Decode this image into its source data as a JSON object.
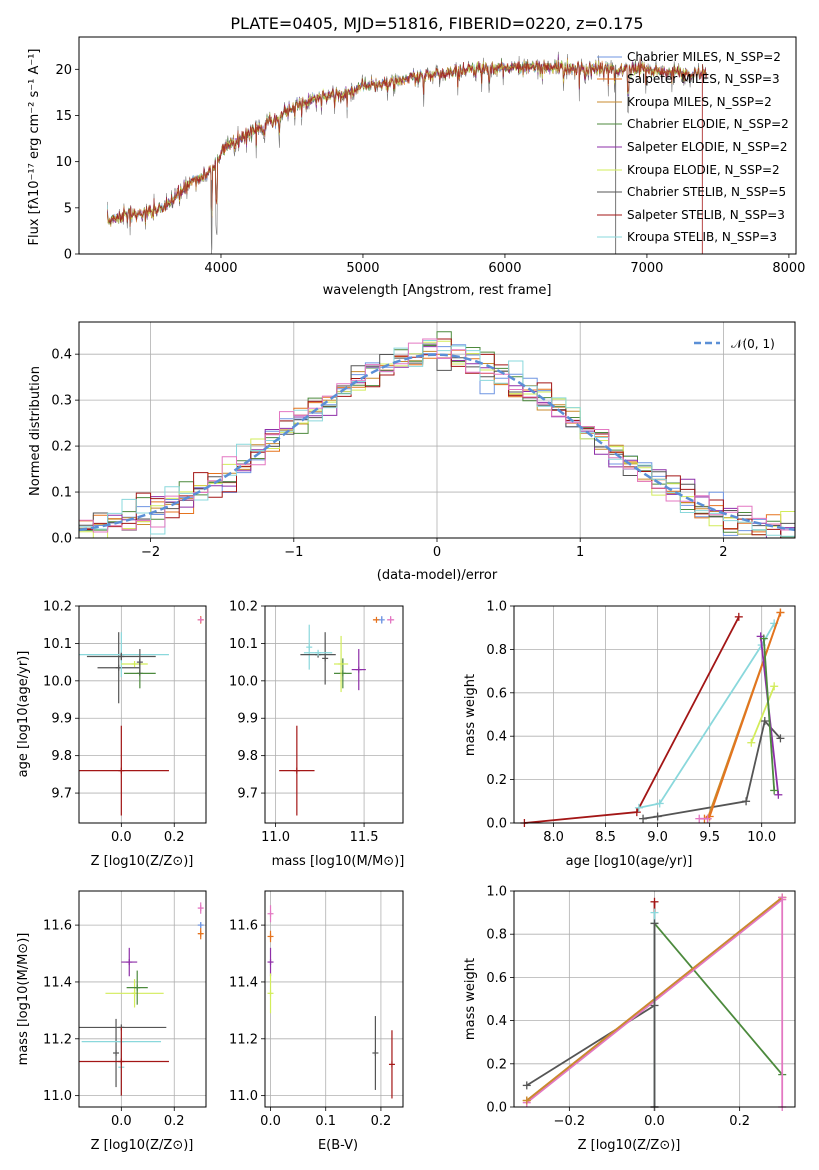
{
  "title": "PLATE=0405, MJD=51816, FIBERID=0220, z=0.175",
  "colors": {
    "Chabrier MILES": "#6f95e2",
    "Salpeter MILES": "#e5731e",
    "Kroupa MILES": "#c88b2f",
    "Chabrier ELODIE": "#4c8a3d",
    "Salpeter ELODIE": "#8e2fa8",
    "Kroupa ELODIE": "#d2ec5a",
    "Chabrier STELIB": "#555555",
    "Salpeter STELIB": "#a31616",
    "Kroupa STELIB": "#8ad8dc",
    "pink": "#e377c2",
    "normal": "#5b8fd6"
  },
  "chart_data": [
    {
      "id": "spectrum",
      "type": "line",
      "title": "PLATE=0405, MJD=51816, FIBERID=0220, z=0.175",
      "xlabel": "wavelength [Angstrom, rest frame]",
      "ylabel": "Flux [fλ10⁻¹⁷ erg cm⁻² s⁻¹ A⁻¹]",
      "xlim": [
        3000,
        8050
      ],
      "ylim": [
        0,
        23.5
      ],
      "xticks": [
        4000,
        5000,
        6000,
        7000,
        8000
      ],
      "yticks": [
        0,
        5,
        10,
        15,
        20
      ],
      "grid": false,
      "legend_position": "right",
      "continuum": [
        [
          3200,
          3.5
        ],
        [
          3300,
          4.2
        ],
        [
          3450,
          4.4
        ],
        [
          3600,
          5.0
        ],
        [
          3700,
          6.5
        ],
        [
          3800,
          8.0
        ],
        [
          3900,
          8.6
        ],
        [
          3950,
          9.5
        ],
        [
          4000,
          11.0
        ],
        [
          4100,
          12.2
        ],
        [
          4200,
          13.2
        ],
        [
          4300,
          13.8
        ],
        [
          4400,
          14.8
        ],
        [
          4500,
          15.8
        ],
        [
          4600,
          16.5
        ],
        [
          4700,
          17.0
        ],
        [
          4800,
          17.2
        ],
        [
          4900,
          17.6
        ],
        [
          5000,
          18.2
        ],
        [
          5100,
          18.4
        ],
        [
          5200,
          18.6
        ],
        [
          5300,
          19.0
        ],
        [
          5400,
          19.3
        ],
        [
          5500,
          19.4
        ],
        [
          5600,
          19.6
        ],
        [
          5700,
          19.9
        ],
        [
          5800,
          20.1
        ],
        [
          5900,
          20.1
        ],
        [
          6000,
          20.3
        ],
        [
          6100,
          20.2
        ],
        [
          6200,
          20.3
        ],
        [
          6400,
          20.1
        ],
        [
          6600,
          20.1
        ],
        [
          6800,
          20.0
        ],
        [
          7000,
          20.0
        ],
        [
          7200,
          19.6
        ],
        [
          7400,
          19.4
        ]
      ],
      "absorption_lines": [
        [
          3934,
          0.0
        ],
        [
          3969,
          2.0
        ],
        [
          4102,
          11.0
        ],
        [
          4304,
          12.0
        ],
        [
          4861,
          16.2
        ],
        [
          5175,
          16.6
        ],
        [
          5270,
          17.0
        ],
        [
          5890,
          17.2
        ],
        [
          6563,
          17.8
        ],
        [
          6867,
          15.0
        ],
        [
          7600,
          18.0
        ]
      ],
      "series": [
        {
          "name": "Chabrier MILES, N_SSP=2"
        },
        {
          "name": "Salpeter MILES, N_SSP=3"
        },
        {
          "name": "Kroupa MILES, N_SSP=2"
        },
        {
          "name": "Chabrier ELODIE, N_SSP=2"
        },
        {
          "name": "Salpeter ELODIE, N_SSP=2"
        },
        {
          "name": "Kroupa ELODIE, N_SSP=2"
        },
        {
          "name": "Chabrier STELIB, N_SSP=5"
        },
        {
          "name": "Salpeter STELIB, N_SSP=3"
        },
        {
          "name": "Kroupa STELIB, N_SSP=3"
        }
      ]
    },
    {
      "id": "residuals",
      "type": "line",
      "xlabel": "(data-model)/error",
      "ylabel": "Normed distribution",
      "xlim": [
        -2.5,
        2.5
      ],
      "ylim": [
        0,
        0.47
      ],
      "xticks": [
        -2,
        -1,
        0,
        1,
        2
      ],
      "yticks": [
        0.0,
        0.1,
        0.2,
        0.3,
        0.4
      ],
      "grid": true,
      "legend": "𝒩(0, 1)",
      "legend_position": "top-right",
      "histogram_bin_width": 0.1,
      "histogram_peak_approx": 0.4,
      "model": "normal pdf, mean 0, sigma 1"
    },
    {
      "id": "age_vs_Z",
      "type": "scatter",
      "xlabel": "Z [log10(Z/Z⊙)]",
      "ylabel": "age  [log10(age/yr)]",
      "xlim": [
        -0.16,
        0.32
      ],
      "ylim": [
        9.62,
        10.2
      ],
      "xticks": [
        0.0,
        0.2
      ],
      "yticks": [
        9.7,
        9.8,
        9.9,
        10.0,
        10.1,
        10.2
      ],
      "grid": true,
      "points": [
        {
          "series": "Chabrier STELIB",
          "x": -0.01,
          "y": 10.035,
          "xerr": 0.08,
          "yerr": 0.095
        },
        {
          "series": "Salpeter STELIB",
          "x": 0.0,
          "y": 9.76,
          "xerr": 0.18,
          "yerr": 0.12
        },
        {
          "series": "Kroupa STELIB",
          "x": 0.0,
          "y": 10.07,
          "xerr": 0.18,
          "yerr": 0.06
        },
        {
          "series": "Chabrier STELIB",
          "x": 0.0,
          "y": 10.065,
          "xerr": 0.13,
          "yerr": 0.01
        },
        {
          "series": "Kroupa ELODIE",
          "x": 0.05,
          "y": 10.045,
          "xerr": 0.05,
          "yerr": 0.0
        },
        {
          "series": "Chabrier ELODIE",
          "x": 0.07,
          "y": 10.02,
          "xerr": 0.06,
          "yerr": 0.04
        },
        {
          "series": "Chabrier STELIB",
          "x": 0.07,
          "y": 10.05,
          "xerr": 0.0,
          "yerr": 0.035
        },
        {
          "series": "Salpeter MILES",
          "x": 0.3,
          "y": 10.163,
          "xerr": 0.0,
          "yerr": 0.01
        },
        {
          "series": "pink",
          "x": 0.3,
          "y": 10.163,
          "xerr": 0.0,
          "yerr": 0.0
        }
      ]
    },
    {
      "id": "age_vs_mass",
      "type": "scatter",
      "xlabel": "mass [log10(M/M⊙)]",
      "ylabel": "",
      "xlim": [
        10.94,
        11.72
      ],
      "ylim": [
        9.62,
        10.2
      ],
      "xticks": [
        11.0,
        11.5
      ],
      "yticks": [
        9.7,
        9.8,
        9.9,
        10.0,
        10.1,
        10.2
      ],
      "grid": true,
      "points": [
        {
          "series": "Salpeter STELIB",
          "x": 11.12,
          "y": 9.76,
          "xerr": 0.1,
          "yerr": 0.12
        },
        {
          "series": "Kroupa STELIB",
          "x": 11.19,
          "y": 10.09,
          "xerr": 0.0,
          "yerr": 0.06
        },
        {
          "series": "Chabrier STELIB",
          "x": 11.24,
          "y": 10.07,
          "xerr": 0.1,
          "yerr": 0.0
        },
        {
          "series": "Chabrier STELIB",
          "x": 11.28,
          "y": 10.06,
          "xerr": 0.0,
          "yerr": 0.07
        },
        {
          "series": "Kroupa STELIB",
          "x": 11.24,
          "y": 10.075,
          "xerr": 0.08,
          "yerr": 0.0
        },
        {
          "series": "Chabrier ELODIE",
          "x": 11.38,
          "y": 10.02,
          "xerr": 0.05,
          "yerr": 0.04
        },
        {
          "series": "Kroupa ELODIE",
          "x": 11.37,
          "y": 10.045,
          "xerr": 0.04,
          "yerr": 0.075
        },
        {
          "series": "Salpeter ELODIE",
          "x": 11.47,
          "y": 10.03,
          "xerr": 0.04,
          "yerr": 0.055
        },
        {
          "series": "Salpeter MILES",
          "x": 11.57,
          "y": 10.163,
          "xerr": 0.02,
          "yerr": 0.0
        },
        {
          "series": "Chabrier MILES",
          "x": 11.6,
          "y": 10.163,
          "xerr": 0.0,
          "yerr": 0.01
        },
        {
          "series": "pink",
          "x": 11.65,
          "y": 10.163,
          "xerr": 0.02,
          "yerr": 0.01
        }
      ]
    },
    {
      "id": "weight_vs_age",
      "type": "line",
      "xlabel": "age  [log10(age/yr)]",
      "ylabel": "mass weight",
      "xlim": [
        7.62,
        10.32
      ],
      "ylim": [
        0,
        1.0
      ],
      "xticks": [
        8.0,
        8.5,
        9.0,
        9.5,
        10.0
      ],
      "yticks": [
        0.0,
        0.2,
        0.4,
        0.6,
        0.8,
        1.0
      ],
      "grid": true,
      "series": [
        {
          "series": "Salpeter STELIB",
          "x": [
            7.72,
            8.8,
            9.78
          ],
          "y": [
            0.0,
            0.05,
            0.95
          ]
        },
        {
          "series": "Kroupa STELIB",
          "x": [
            8.82,
            9.02,
            10.0,
            10.12
          ],
          "y": [
            0.07,
            0.09,
            0.82,
            0.92
          ]
        },
        {
          "series": "Chabrier STELIB",
          "x": [
            8.86,
            9.0,
            9.85,
            10.03,
            10.18
          ],
          "y": [
            0.02,
            0.03,
            0.1,
            0.47,
            0.39
          ]
        },
        {
          "series": "Kroupa MILES",
          "x": [
            9.48,
            10.18
          ],
          "y": [
            0.02,
            0.97
          ]
        },
        {
          "series": "Salpeter MILES",
          "x": [
            9.45,
            9.5,
            10.18
          ],
          "y": [
            0.02,
            0.03,
            0.97
          ]
        },
        {
          "series": "Kroupa ELODIE",
          "x": [
            9.9,
            10.12
          ],
          "y": [
            0.37,
            0.63
          ]
        },
        {
          "series": "Salpeter ELODIE",
          "x": [
            9.99,
            10.16
          ],
          "y": [
            0.86,
            0.13
          ]
        },
        {
          "series": "Chabrier ELODIE",
          "x": [
            10.02,
            10.12
          ],
          "y": [
            0.85,
            0.15
          ]
        },
        {
          "series": "pink",
          "x": [
            9.4,
            9.48
          ],
          "y": [
            0.02,
            0.02
          ]
        }
      ]
    },
    {
      "id": "mass_vs_Z",
      "type": "scatter",
      "xlabel": "Z [log10(Z/Z⊙)]",
      "ylabel": "mass [log10(M/M⊙)]",
      "xlim": [
        -0.16,
        0.32
      ],
      "ylim": [
        10.96,
        11.72
      ],
      "xticks": [
        0.0,
        0.2
      ],
      "yticks": [
        11.0,
        11.2,
        11.4,
        11.6
      ],
      "grid": true,
      "points": [
        {
          "series": "Chabrier STELIB",
          "x": -0.02,
          "y": 11.15,
          "xerr": 0.0,
          "yerr": 0.12
        },
        {
          "series": "Chabrier STELIB",
          "x": 0.0,
          "y": 11.24,
          "xerr": 0.17,
          "yerr": 0.0
        },
        {
          "series": "Kroupa STELIB",
          "x": 0.0,
          "y": 11.19,
          "xerr": 0.15,
          "yerr": 0.0
        },
        {
          "series": "Kroupa STELIB",
          "x": 0.0,
          "y": 11.1,
          "xerr": 0.0,
          "yerr": 0.1
        },
        {
          "series": "Salpeter STELIB",
          "x": 0.0,
          "y": 11.12,
          "xerr": 0.18,
          "yerr": 0.12
        },
        {
          "series": "Salpeter ELODIE",
          "x": 0.03,
          "y": 11.47,
          "xerr": 0.03,
          "yerr": 0.05
        },
        {
          "series": "Kroupa ELODIE",
          "x": 0.05,
          "y": 11.36,
          "xerr": 0.11,
          "yerr": 0.05
        },
        {
          "series": "Chabrier ELODIE",
          "x": 0.06,
          "y": 11.38,
          "xerr": 0.04,
          "yerr": 0.06
        },
        {
          "series": "pink",
          "x": 0.3,
          "y": 11.66,
          "xerr": 0.01,
          "yerr": 0.02
        },
        {
          "series": "Chabrier MILES",
          "x": 0.3,
          "y": 11.6,
          "xerr": 0.0,
          "yerr": 0.01
        },
        {
          "series": "Salpeter MILES",
          "x": 0.3,
          "y": 11.57,
          "xerr": 0.01,
          "yerr": 0.02
        }
      ]
    },
    {
      "id": "mass_vs_EBV",
      "type": "scatter",
      "xlabel": "E(B-V)",
      "ylabel": "",
      "xlim": [
        -0.01,
        0.24
      ],
      "ylim": [
        10.96,
        11.72
      ],
      "xticks": [
        0.0,
        0.1,
        0.2
      ],
      "yticks": [
        11.0,
        11.2,
        11.4,
        11.6
      ],
      "grid": true,
      "points": [
        {
          "series": "pink",
          "x": 0.0,
          "y": 11.64,
          "xerr": 0.0,
          "yerr": 0.03
        },
        {
          "series": "Salpeter MILES",
          "x": 0.0,
          "y": 11.56,
          "xerr": 0.0,
          "yerr": 0.02
        },
        {
          "series": "Salpeter ELODIE",
          "x": 0.0,
          "y": 11.47,
          "xerr": 0.0,
          "yerr": 0.05
        },
        {
          "series": "Kroupa ELODIE",
          "x": 0.0,
          "y": 11.36,
          "xerr": 0.0,
          "yerr": 0.07
        },
        {
          "series": "Chabrier STELIB",
          "x": 0.19,
          "y": 11.15,
          "xerr": 0.0,
          "yerr": 0.13
        },
        {
          "series": "Salpeter STELIB",
          "x": 0.22,
          "y": 11.11,
          "xerr": 0.0,
          "yerr": 0.12
        }
      ]
    },
    {
      "id": "weight_vs_Z",
      "type": "line",
      "xlabel": "Z [log10(Z/Z⊙)]",
      "ylabel": "mass weight",
      "xlim": [
        -0.33,
        0.33
      ],
      "ylim": [
        0,
        1.0
      ],
      "xticks": [
        -0.2,
        0.0,
        0.2
      ],
      "yticks": [
        0.0,
        0.2,
        0.4,
        0.6,
        0.8,
        1.0
      ],
      "grid": true,
      "series": [
        {
          "series": "Chabrier STELIB",
          "x": [
            -0.3,
            0.0
          ],
          "y": [
            0.1,
            0.47
          ]
        },
        {
          "series": "Chabrier ELODIE",
          "x": [
            0.0,
            0.3
          ],
          "y": [
            0.85,
            0.15
          ]
        },
        {
          "series": "Salpeter MILES",
          "x": [
            -0.3,
            0.3
          ],
          "y": [
            0.03,
            0.97
          ]
        },
        {
          "series": "pink",
          "x": [
            -0.3,
            0.3
          ],
          "y": [
            0.02,
            0.96
          ]
        },
        {
          "series": "Kroupa MILES",
          "x": [
            -0.3,
            0.3
          ],
          "y": [
            0.03,
            0.97
          ]
        },
        {
          "series": "pink",
          "x": [
            0.3,
            0.3
          ],
          "y": [
            0.0,
            0.97
          ]
        },
        {
          "series": "Salpeter STELIB",
          "x": [
            0.0,
            0.0
          ],
          "y": [
            0.0,
            0.95
          ]
        },
        {
          "series": "Kroupa STELIB",
          "x": [
            0.0,
            0.0
          ],
          "y": [
            0.0,
            0.9
          ]
        },
        {
          "series": "Chabrier STELIB",
          "x": [
            0.0,
            0.0
          ],
          "y": [
            0.0,
            0.85
          ]
        }
      ]
    }
  ]
}
